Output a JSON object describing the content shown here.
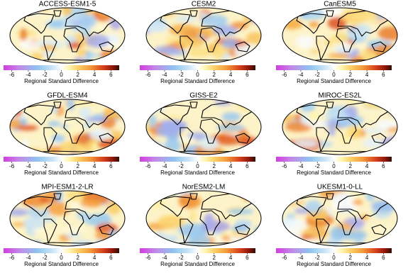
{
  "panels": [
    {
      "title": "ACCESS-ESM1-5"
    },
    {
      "title": "CESM2"
    },
    {
      "title": "CanESM5"
    },
    {
      "title": "GFDL-ESM4"
    },
    {
      "title": "GISS-E2"
    },
    {
      "title": "MIROC-ES2L"
    },
    {
      "title": "MPI-ESM1-2-LR"
    },
    {
      "title": "NorESM2-LM"
    },
    {
      "title": "UKESM1-0-LL"
    }
  ],
  "colorbar": {
    "label": "Regional Standard Difference",
    "lim": [
      -7,
      7
    ],
    "ticks": [
      -6,
      -4,
      -2,
      0,
      2,
      4,
      6
    ]
  }
}
